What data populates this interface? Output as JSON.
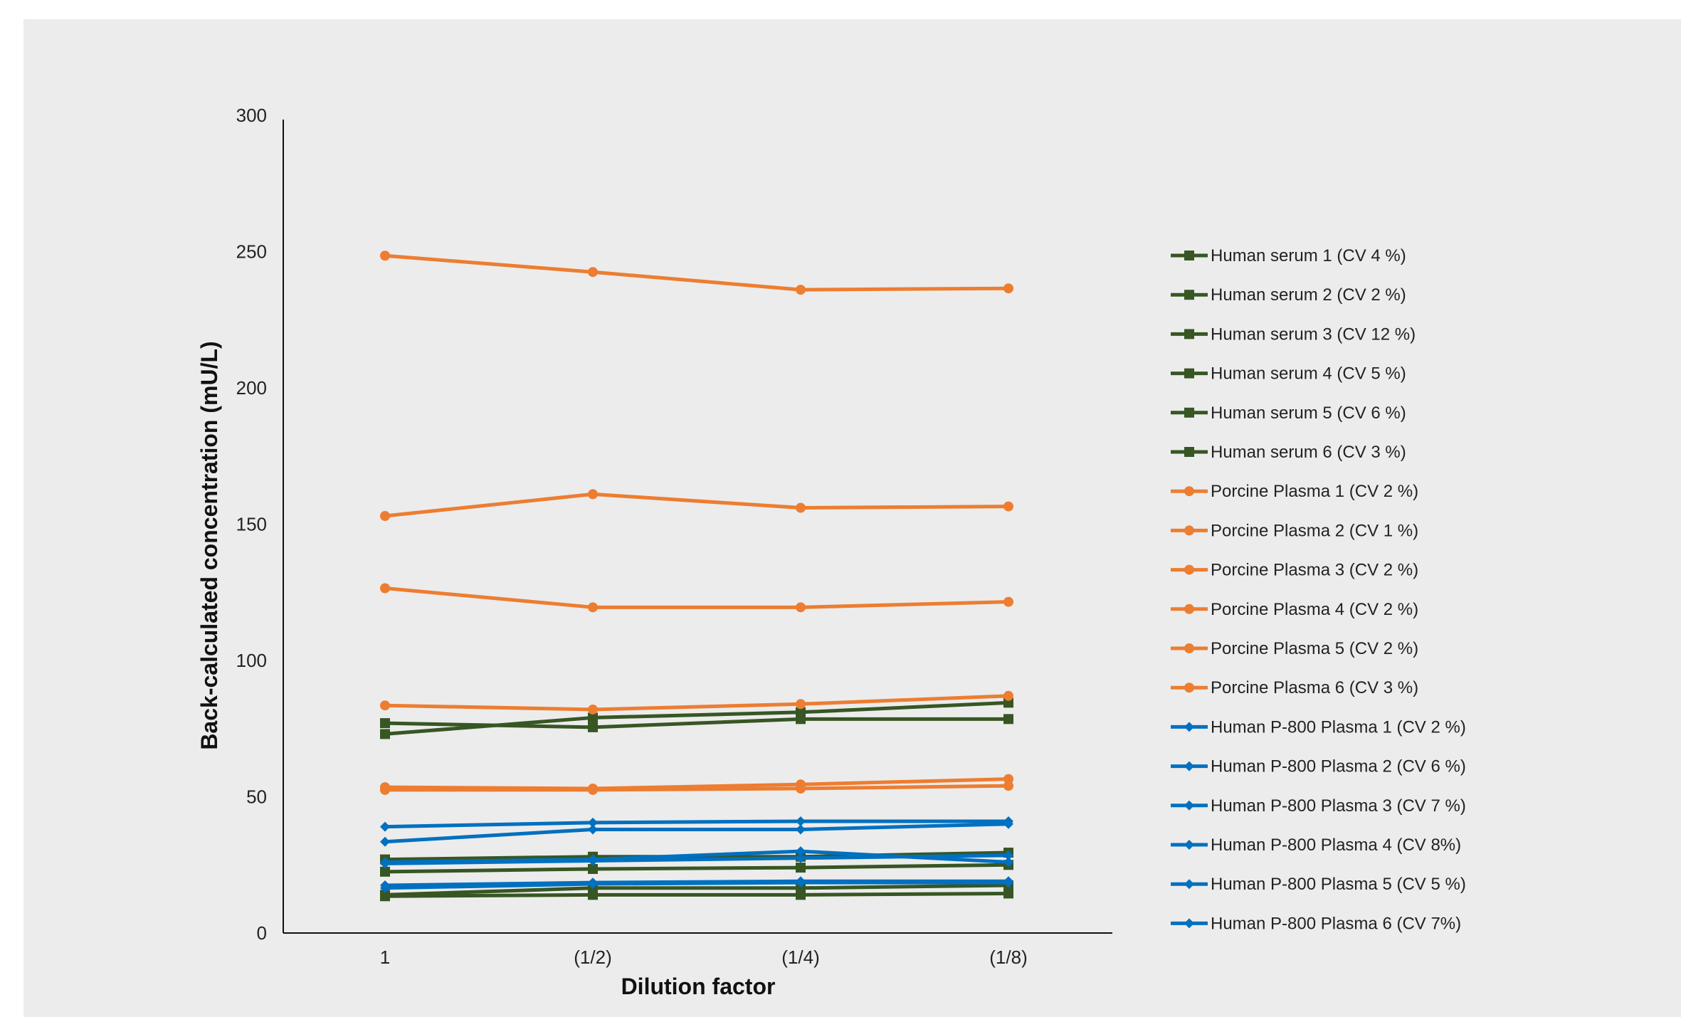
{
  "chart_data": {
    "type": "line",
    "title": "",
    "xlabel": "Dilution factor",
    "ylabel": "Back-calculated concentration (mU/L)",
    "ylim": [
      0,
      300
    ],
    "yticks": [
      0,
      50,
      100,
      150,
      200,
      250,
      300
    ],
    "categories": [
      "1",
      "(1/2)",
      "(1/4)",
      "(1/8)"
    ],
    "grid": false,
    "legend": "right",
    "colors": {
      "serum": "#375623",
      "porcine": "#ed7d31",
      "p800": "#0070c0"
    },
    "series": [
      {
        "name": "Human serum 1 (CV 4 %)",
        "group": "serum",
        "marker": "square",
        "values": [
          77,
          75.5,
          78.5,
          78.5
        ]
      },
      {
        "name": "Human serum 2 (CV 2 %)",
        "group": "serum",
        "marker": "square",
        "values": [
          73,
          79,
          81,
          84.5
        ]
      },
      {
        "name": "Human serum 3 (CV 12 %)",
        "group": "serum",
        "marker": "square",
        "values": [
          27,
          28,
          28,
          29.5
        ]
      },
      {
        "name": "Human serum 4 (CV 5 %)",
        "group": "serum",
        "marker": "square",
        "values": [
          22.5,
          23.5,
          24,
          25
        ]
      },
      {
        "name": "Human serum 5 (CV 6 %)",
        "group": "serum",
        "marker": "square",
        "values": [
          14,
          16.5,
          16.5,
          17.5
        ]
      },
      {
        "name": "Human serum 6 (CV 3 %)",
        "group": "serum",
        "marker": "square",
        "values": [
          13.5,
          14,
          14,
          14.5
        ]
      },
      {
        "name": "Porcine Plasma 1 (CV 2 %)",
        "group": "porcine",
        "marker": "circle",
        "values": [
          248.5,
          242.5,
          236,
          236.5
        ]
      },
      {
        "name": "Porcine Plasma 2 (CV 1 %)",
        "group": "porcine",
        "marker": "circle",
        "values": [
          153,
          161,
          156,
          156.5
        ]
      },
      {
        "name": "Porcine Plasma 3 (CV 2 %)",
        "group": "porcine",
        "marker": "circle",
        "values": [
          126.5,
          119.5,
          119.5,
          121.5
        ]
      },
      {
        "name": "Porcine Plasma 4 (CV 2 %)",
        "group": "porcine",
        "marker": "circle",
        "values": [
          83.5,
          82,
          84,
          87
        ]
      },
      {
        "name": "Porcine Plasma 5 (CV 2 %)",
        "group": "porcine",
        "marker": "circle",
        "values": [
          53.5,
          53,
          54.5,
          56.5
        ]
      },
      {
        "name": "Porcine Plasma 6 (CV 3 %)",
        "group": "porcine",
        "marker": "circle",
        "values": [
          52.5,
          52.5,
          53,
          54
        ]
      },
      {
        "name": "Human P-800 Plasma 1 (CV 2 %)",
        "group": "p800",
        "marker": "diamond",
        "values": [
          39,
          40.5,
          41,
          41
        ]
      },
      {
        "name": "Human P-800 Plasma 2 (CV 6 %)",
        "group": "p800",
        "marker": "diamond",
        "values": [
          33.5,
          38,
          38,
          40
        ]
      },
      {
        "name": "Human P-800 Plasma 3 (CV 7 %)",
        "group": "p800",
        "marker": "diamond",
        "values": [
          26,
          27,
          30,
          26
        ]
      },
      {
        "name": "Human P-800 Plasma 4 (CV 8%)",
        "group": "p800",
        "marker": "diamond",
        "values": [
          25.5,
          26.5,
          27.5,
          28.5
        ]
      },
      {
        "name": "Human P-800 Plasma 5 (CV 5 %)",
        "group": "p800",
        "marker": "diamond",
        "values": [
          17.5,
          18.5,
          19,
          19
        ]
      },
      {
        "name": "Human P-800 Plasma 6 (CV 7%)",
        "group": "p800",
        "marker": "diamond",
        "values": [
          16.5,
          18,
          18.5,
          18.5
        ]
      }
    ]
  }
}
